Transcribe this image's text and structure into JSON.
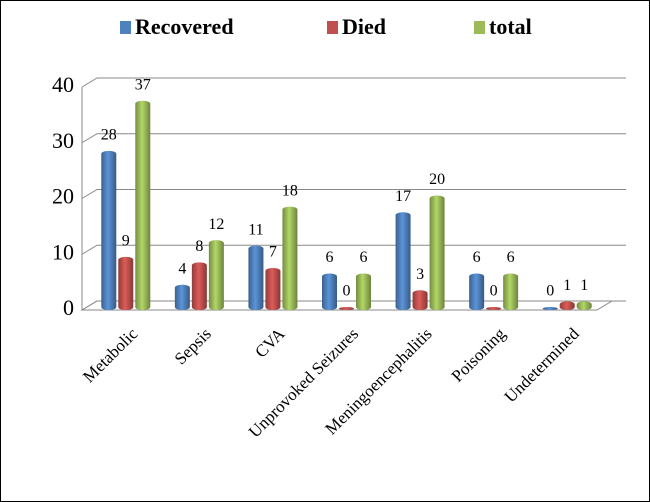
{
  "chart_data": {
    "type": "bar",
    "categories": [
      "Metabolic",
      "Sepsis",
      "CVA",
      "Unprovoked Seizures",
      "Meningoencephalitis",
      "Poisoning",
      "Undetermined"
    ],
    "series": [
      {
        "name": "Recovered",
        "color": "#4f81bd",
        "values": [
          28,
          4,
          11,
          6,
          17,
          6,
          0
        ]
      },
      {
        "name": "Died",
        "color": "#c0504d",
        "values": [
          9,
          8,
          7,
          0,
          3,
          0,
          1
        ]
      },
      {
        "name": "total",
        "color": "#9bbb59",
        "values": [
          37,
          12,
          18,
          6,
          20,
          6,
          1
        ]
      }
    ],
    "ylim": [
      0,
      40
    ],
    "yticks": [
      0,
      10,
      20,
      30,
      40
    ],
    "grid": true,
    "legend": "top"
  }
}
